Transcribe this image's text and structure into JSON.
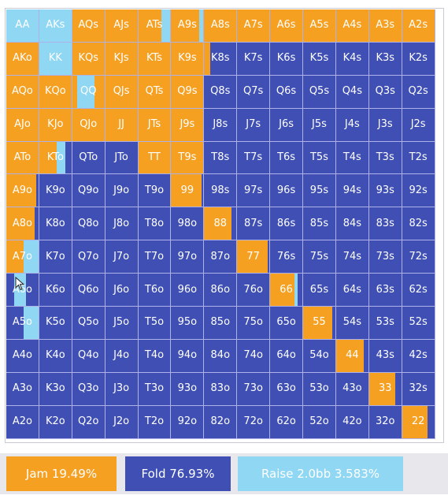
{
  "colors": {
    "jam": "#f6a022",
    "fold": "#3f4fb3",
    "raise": "#8fd7f3"
  },
  "legend": {
    "jam_label": "Jam 19.49%",
    "fold_label": "Fold 76.93%",
    "raise_label": "Raise 2.0bb 3.583%"
  },
  "grid": {
    "rows": [
      [
        "AA",
        "AKs",
        "AQs",
        "AJs",
        "ATs",
        "A9s",
        "A8s",
        "A7s",
        "A6s",
        "A5s",
        "A4s",
        "A3s",
        "A2s"
      ],
      [
        "AKo",
        "KK",
        "KQs",
        "KJs",
        "KTs",
        "K9s",
        "K8s",
        "K7s",
        "K6s",
        "K5s",
        "K4s",
        "K3s",
        "K2s"
      ],
      [
        "AQo",
        "KQo",
        "QQ",
        "QJs",
        "QTs",
        "Q9s",
        "Q8s",
        "Q7s",
        "Q6s",
        "Q5s",
        "Q4s",
        "Q3s",
        "Q2s"
      ],
      [
        "AJo",
        "KJo",
        "QJo",
        "JJ",
        "JTs",
        "J9s",
        "J8s",
        "J7s",
        "J6s",
        "J5s",
        "J4s",
        "J3s",
        "J2s"
      ],
      [
        "ATo",
        "KTo",
        "QTo",
        "JTo",
        "TT",
        "T9s",
        "T8s",
        "T7s",
        "T6s",
        "T5s",
        "T4s",
        "T3s",
        "T2s"
      ],
      [
        "A9o",
        "K9o",
        "Q9o",
        "J9o",
        "T9o",
        "99",
        "98s",
        "97s",
        "96s",
        "95s",
        "94s",
        "93s",
        "92s"
      ],
      [
        "A8o",
        "K8o",
        "Q8o",
        "J8o",
        "T8o",
        "98o",
        "88",
        "87s",
        "86s",
        "85s",
        "84s",
        "83s",
        "82s"
      ],
      [
        "A7o",
        "K7o",
        "Q7o",
        "J7o",
        "T7o",
        "97o",
        "87o",
        "77",
        "76s",
        "75s",
        "74s",
        "73s",
        "72s"
      ],
      [
        "A6o",
        "K6o",
        "Q6o",
        "J6o",
        "T6o",
        "96o",
        "86o",
        "76o",
        "66",
        "65s",
        "64s",
        "63s",
        "62s"
      ],
      [
        "A5o",
        "K5o",
        "Q5o",
        "J5o",
        "T5o",
        "95o",
        "85o",
        "75o",
        "65o",
        "55",
        "54s",
        "53s",
        "52s"
      ],
      [
        "A4o",
        "K4o",
        "Q4o",
        "J4o",
        "T4o",
        "94o",
        "84o",
        "74o",
        "64o",
        "54o",
        "44",
        "43s",
        "42s"
      ],
      [
        "A3o",
        "K3o",
        "Q3o",
        "J3o",
        "T3o",
        "93o",
        "83o",
        "73o",
        "63o",
        "53o",
        "43o",
        "33",
        "32s"
      ],
      [
        "A2o",
        "K2o",
        "Q2o",
        "J2o",
        "T2o",
        "92o",
        "82o",
        "72o",
        "62o",
        "52o",
        "42o",
        "32o",
        "22"
      ]
    ],
    "mixed": {
      "AA": [
        [
          "raise",
          1.0
        ]
      ],
      "AKs": [
        [
          "raise",
          1.0
        ]
      ],
      "ATs": [
        [
          "jam",
          0.72
        ],
        [
          "raise",
          0.28
        ]
      ],
      "A9s": [
        [
          "jam",
          0.88
        ],
        [
          "raise",
          0.12
        ]
      ],
      "KK": [
        [
          "raise",
          1.0
        ]
      ],
      "K8s": [
        [
          "jam",
          0.18
        ],
        [
          "fold",
          0.82
        ]
      ],
      "QQ": [
        [
          "jam",
          0.15
        ],
        [
          "raise",
          0.55
        ],
        [
          "jam",
          0.3
        ]
      ],
      "KTo": [
        [
          "jam",
          0.55
        ],
        [
          "raise",
          0.25
        ],
        [
          "fold",
          0.2
        ]
      ],
      "A9o": [
        [
          "jam",
          0.92
        ],
        [
          "fold",
          0.08
        ]
      ],
      "A8o": [
        [
          "jam",
          0.88
        ],
        [
          "fold",
          0.12
        ]
      ],
      "A7o": [
        [
          "jam",
          0.55
        ],
        [
          "raise",
          0.45
        ]
      ],
      "A6o": [
        [
          "fold",
          0.25
        ],
        [
          "raise",
          0.35
        ],
        [
          "fold",
          0.4
        ]
      ],
      "A5o": [
        [
          "fold",
          0.55
        ],
        [
          "raise",
          0.45
        ]
      ],
      "99": [
        [
          "jam",
          0.95
        ],
        [
          "fold",
          0.05
        ]
      ],
      "88": [
        [
          "jam",
          0.85
        ],
        [
          "fold",
          0.15
        ]
      ],
      "77": [
        [
          "jam",
          0.95
        ],
        [
          "fold",
          0.05
        ]
      ],
      "66": [
        [
          "jam",
          0.75
        ],
        [
          "raise",
          0.1
        ],
        [
          "fold",
          0.15
        ]
      ],
      "55": [
        [
          "jam",
          0.9
        ],
        [
          "fold",
          0.1
        ]
      ],
      "44": [
        [
          "jam",
          0.85
        ],
        [
          "fold",
          0.15
        ]
      ],
      "33": [
        [
          "jam",
          0.82
        ],
        [
          "fold",
          0.18
        ]
      ],
      "22": [
        [
          "jam",
          0.78
        ],
        [
          "fold",
          0.22
        ]
      ]
    },
    "jam_hands": [
      "AQs",
      "AJs",
      "A8s",
      "A7s",
      "A6s",
      "A5s",
      "A4s",
      "A3s",
      "A2s",
      "AKo",
      "KQs",
      "KJs",
      "KTs",
      "K9s",
      "AQo",
      "KQo",
      "QJs",
      "QTs",
      "Q9s",
      "AJo",
      "KJo",
      "QJo",
      "JJ",
      "JTs",
      "J9s",
      "ATo",
      "TT",
      "T9s"
    ]
  }
}
